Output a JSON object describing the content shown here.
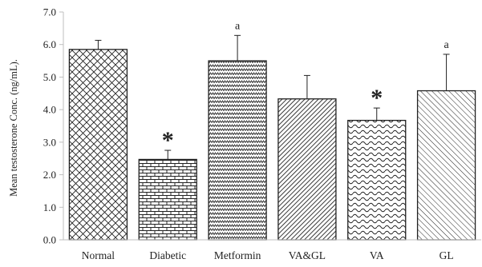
{
  "chart_data": {
    "type": "bar",
    "title": "",
    "xlabel": "",
    "ylabel": "Mean testosterone Conc. (ng/mL).",
    "ylim": [
      0,
      7
    ],
    "yticks": [
      "0.0",
      "1.0",
      "2.0",
      "3.0",
      "4.0",
      "5.0",
      "6.0",
      "7.0"
    ],
    "grid": false,
    "categories": [
      "Normal",
      "Diabetic",
      "Metformin",
      "VA&GL",
      "VA",
      "GL"
    ],
    "values": [
      5.85,
      2.47,
      5.5,
      4.33,
      3.67,
      4.58
    ],
    "errors": [
      0.28,
      0.28,
      0.78,
      0.72,
      0.38,
      1.12
    ],
    "annotations": [
      "",
      "*",
      "a",
      "",
      "*",
      "a"
    ],
    "patterns": [
      "diamond-lattice",
      "brick",
      "zigzag",
      "diagonal-lines",
      "wave",
      "diagonal-lines-sparse"
    ],
    "colors": {
      "stroke": "#222222",
      "background": "#ffffff",
      "axis": "#bfbfbf"
    }
  }
}
